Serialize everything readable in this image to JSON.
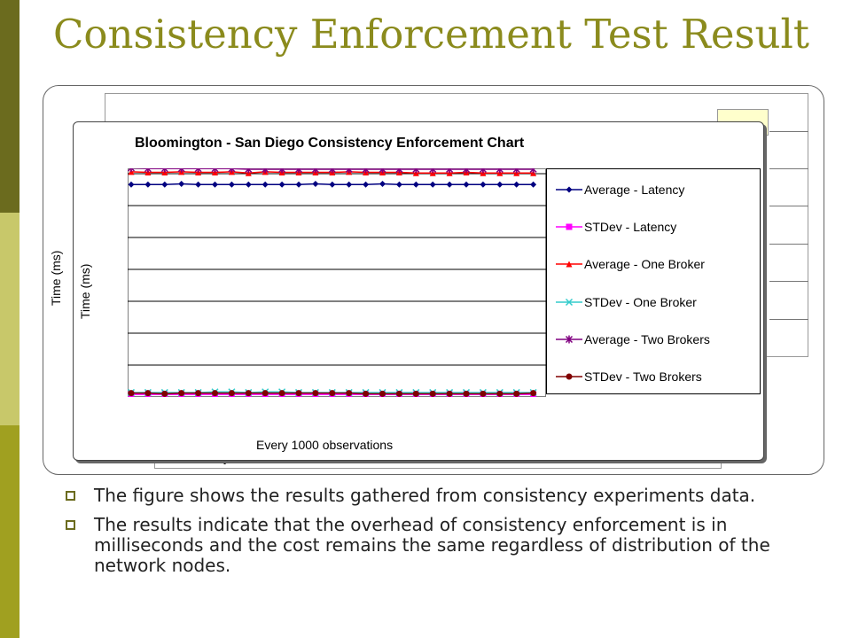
{
  "slide": {
    "title": "Consistency Enforcement Test Result",
    "bullets": [
      "The figure shows the results gathered from consistency experiments data.",
      "The results indicate that the overhead of consistency enforcement is in milliseconds and the cost remains the same regardless of distribution of the network nodes."
    ],
    "colors": {
      "title": "#8b8b1d",
      "strip_dark": "#6b6b1e",
      "strip_light": "#c8c86a",
      "strip_mid": "#a0a020"
    }
  },
  "back_chart": {
    "ylabel": "Time (ms)",
    "legend_fragment": "Latency"
  },
  "chart_data": {
    "type": "line",
    "title": "Bloomington - San Diego Consistency Enforcement Chart",
    "xlabel": "Every 1000 observations",
    "ylabel": "Time (ms)",
    "grid": true,
    "legend_position": "right",
    "x": [
      1,
      2,
      3,
      4,
      5,
      6,
      7,
      8,
      9,
      10,
      11,
      12,
      13,
      14,
      15,
      16,
      17,
      18,
      19,
      20,
      21,
      22,
      23,
      24,
      25
    ],
    "ylim": [
      0,
      7
    ],
    "series": [
      {
        "name": "Average - Latency",
        "color": "#000080",
        "marker": "diamond",
        "values": [
          6.66,
          6.66,
          6.66,
          6.68,
          6.66,
          6.66,
          6.66,
          6.66,
          6.66,
          6.66,
          6.66,
          6.68,
          6.66,
          6.66,
          6.66,
          6.68,
          6.66,
          6.66,
          6.66,
          6.66,
          6.66,
          6.66,
          6.66,
          6.66,
          6.66
        ]
      },
      {
        "name": "STDev - Latency",
        "color": "#ff00ff",
        "marker": "square",
        "values": [
          0.08,
          0.08,
          0.08,
          0.08,
          0.08,
          0.08,
          0.08,
          0.08,
          0.08,
          0.08,
          0.08,
          0.08,
          0.08,
          0.08,
          0.08,
          0.08,
          0.08,
          0.08,
          0.08,
          0.08,
          0.08,
          0.08,
          0.08,
          0.08,
          0.08
        ]
      },
      {
        "name": "Average - One Broker",
        "color": "#ff0000",
        "marker": "triangle",
        "values": [
          7.06,
          7.04,
          7.04,
          7.06,
          7.04,
          7.04,
          7.06,
          7.02,
          7.06,
          7.04,
          7.04,
          7.04,
          7.04,
          7.06,
          7.04,
          7.04,
          7.04,
          7.02,
          7.02,
          7.02,
          7.04,
          7.02,
          7.02,
          7.02,
          7.02
        ]
      },
      {
        "name": "STDev - One Broker",
        "color": "#33cccc",
        "marker": "x",
        "values": [
          0.14,
          0.14,
          0.14,
          0.14,
          0.14,
          0.16,
          0.16,
          0.14,
          0.16,
          0.16,
          0.14,
          0.14,
          0.14,
          0.14,
          0.14,
          0.14,
          0.14,
          0.14,
          0.14,
          0.14,
          0.14,
          0.14,
          0.14,
          0.14,
          0.14
        ]
      },
      {
        "name": "Average - Two Brokers",
        "color": "#800080",
        "marker": "star",
        "values": [
          7.18,
          7.16,
          7.16,
          7.16,
          7.16,
          7.16,
          7.16,
          7.14,
          7.14,
          7.14,
          7.14,
          7.14,
          7.14,
          7.14,
          7.14,
          7.14,
          7.14,
          7.14,
          7.14,
          7.14,
          7.14,
          7.14,
          7.14,
          7.14,
          7.14
        ]
      },
      {
        "name": "STDev - Two Brokers",
        "color": "#800000",
        "marker": "circle",
        "values": [
          0.12,
          0.12,
          0.1,
          0.12,
          0.12,
          0.12,
          0.12,
          0.12,
          0.12,
          0.12,
          0.12,
          0.12,
          0.12,
          0.12,
          0.1,
          0.1,
          0.1,
          0.1,
          0.1,
          0.1,
          0.1,
          0.1,
          0.1,
          0.1,
          0.12
        ]
      }
    ]
  }
}
